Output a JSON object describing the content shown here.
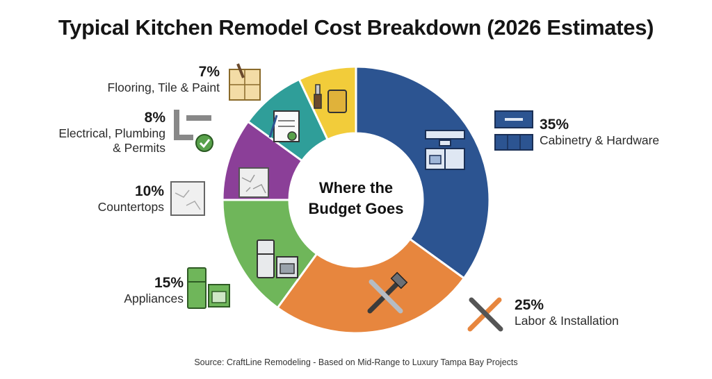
{
  "chart_data": {
    "type": "pie",
    "title": "Typical Kitchen Remodel Cost Breakdown (2026 Estimates)",
    "center_label_line1": "Where the",
    "center_label_line2": "Budget Goes",
    "source": "Source: CraftLine Remodeling - Based on Mid-Range to Luxury Tampa Bay Projects",
    "categories": [
      "Cabinetry & Hardware",
      "Labor & Installation",
      "Appliances",
      "Countertops",
      "Electrical, Plumbing & Permits",
      "Flooring, Tile & Paint"
    ],
    "values": [
      35,
      25,
      15,
      10,
      8,
      7
    ],
    "value_labels": [
      "35%",
      "25%",
      "15%",
      "10%",
      "8%",
      "7%"
    ],
    "colors": [
      "#2c5491",
      "#e7863e",
      "#6fb65a",
      "#8b3f98",
      "#2f9e99",
      "#f2cc3a"
    ],
    "label_lines": {
      "electrical_line1": "Electrical, Plumbing",
      "electrical_line2": "& Permits"
    },
    "icons": [
      "kitchen-cabinets-icon",
      "hammer-wrench-icon",
      "fridge-stove-icon",
      "marble-slab-icon",
      "permit-document-icon",
      "paint-bucket-brush-icon",
      "cabinet-drawers-icon",
      "pipes-check-icon",
      "tile-brush-icon"
    ]
  }
}
